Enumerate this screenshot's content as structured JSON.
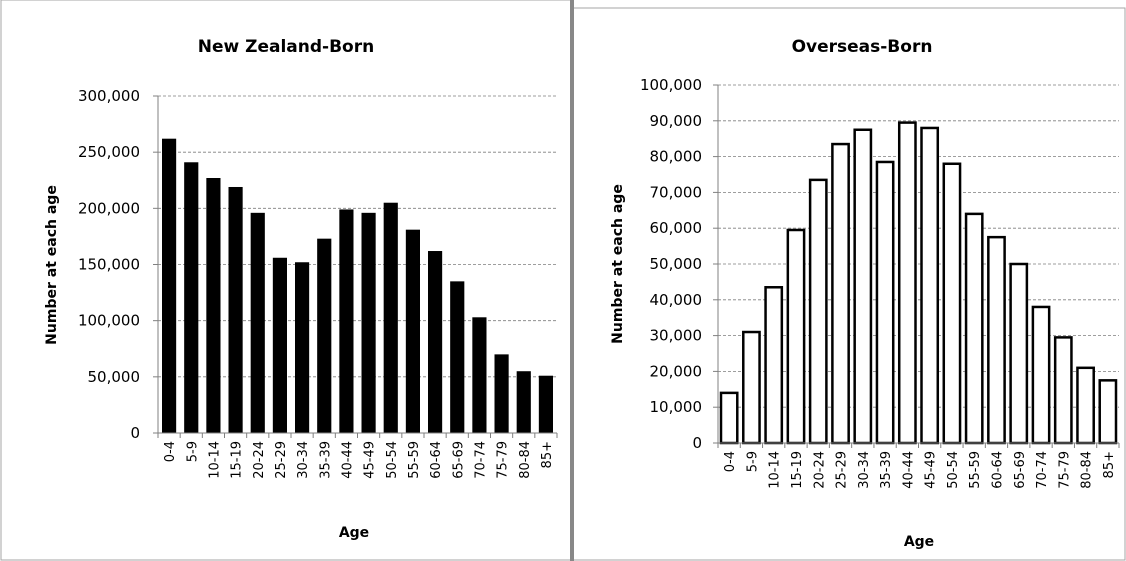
{
  "chart_data": [
    {
      "type": "bar",
      "title": "New Zealand-Born",
      "xlabel": "Age",
      "ylabel": "Number at each age",
      "ylim": [
        0,
        300000
      ],
      "yticks": [
        0,
        50000,
        100000,
        150000,
        200000,
        250000,
        300000
      ],
      "ytick_labels": [
        "0",
        "50,000",
        "100,000",
        "150,000",
        "200,000",
        "250,000",
        "300,000"
      ],
      "grid": true,
      "bar_color": "#000000",
      "categories": [
        "0-4",
        "5-9",
        "10-14",
        "15-19",
        "20-24",
        "25-29",
        "30-34",
        "35-39",
        "40-44",
        "45-49",
        "50-54",
        "55-59",
        "60-64",
        "65-69",
        "70-74",
        "75-79",
        "80-84",
        "85+"
      ],
      "values": [
        262000,
        241000,
        227000,
        219000,
        196000,
        156000,
        152000,
        173000,
        199000,
        196000,
        205000,
        181000,
        162000,
        135000,
        103000,
        70000,
        55000,
        51000
      ]
    },
    {
      "type": "bar",
      "title": "Overseas-Born",
      "xlabel": "Age",
      "ylabel": "Number at each age",
      "ylim": [
        0,
        100000
      ],
      "yticks": [
        0,
        10000,
        20000,
        30000,
        40000,
        50000,
        60000,
        70000,
        80000,
        90000,
        100000
      ],
      "ytick_labels": [
        "0",
        "10,000",
        "20,000",
        "30,000",
        "40,000",
        "50,000",
        "60,000",
        "70,000",
        "80,000",
        "90,000",
        "100,000"
      ],
      "grid": true,
      "bar_color": "#ffffff",
      "categories": [
        "0-4",
        "5-9",
        "10-14",
        "15-19",
        "20-24",
        "25-29",
        "30-34",
        "35-39",
        "40-44",
        "45-49",
        "50-54",
        "55-59",
        "60-64",
        "65-69",
        "70-74",
        "75-79",
        "80-84",
        "85+"
      ],
      "values": [
        14000,
        31000,
        43500,
        59500,
        73500,
        83500,
        87500,
        78500,
        89500,
        88000,
        78000,
        64000,
        57500,
        50000,
        38000,
        29500,
        21000,
        17500
      ]
    }
  ]
}
